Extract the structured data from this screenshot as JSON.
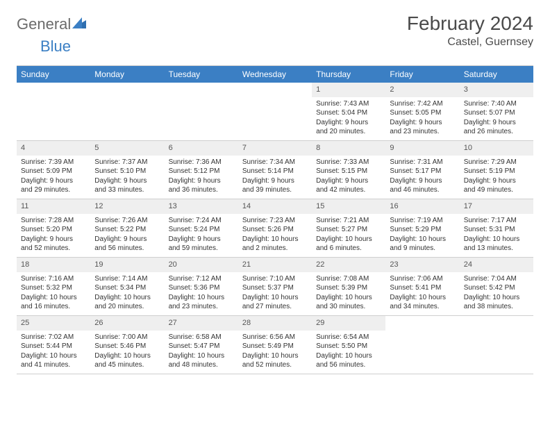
{
  "logo": {
    "text1": "General",
    "text2": "Blue"
  },
  "title": "February 2024",
  "location": "Castel, Guernsey",
  "colors": {
    "header_bg": "#3b7fc4",
    "header_text": "#ffffff",
    "daynum_bg": "#efefef",
    "border": "#cfcfcf",
    "body_text": "#333333",
    "logo_gray": "#6b6b6b",
    "logo_blue": "#3b7fc4",
    "page_bg": "#ffffff"
  },
  "day_headers": [
    "Sunday",
    "Monday",
    "Tuesday",
    "Wednesday",
    "Thursday",
    "Friday",
    "Saturday"
  ],
  "grid": {
    "leading_empty": 4,
    "trailing_empty": 2,
    "days": [
      {
        "n": "1",
        "sunrise": "Sunrise: 7:43 AM",
        "sunset": "Sunset: 5:04 PM",
        "d1": "Daylight: 9 hours",
        "d2": "and 20 minutes."
      },
      {
        "n": "2",
        "sunrise": "Sunrise: 7:42 AM",
        "sunset": "Sunset: 5:05 PM",
        "d1": "Daylight: 9 hours",
        "d2": "and 23 minutes."
      },
      {
        "n": "3",
        "sunrise": "Sunrise: 7:40 AM",
        "sunset": "Sunset: 5:07 PM",
        "d1": "Daylight: 9 hours",
        "d2": "and 26 minutes."
      },
      {
        "n": "4",
        "sunrise": "Sunrise: 7:39 AM",
        "sunset": "Sunset: 5:09 PM",
        "d1": "Daylight: 9 hours",
        "d2": "and 29 minutes."
      },
      {
        "n": "5",
        "sunrise": "Sunrise: 7:37 AM",
        "sunset": "Sunset: 5:10 PM",
        "d1": "Daylight: 9 hours",
        "d2": "and 33 minutes."
      },
      {
        "n": "6",
        "sunrise": "Sunrise: 7:36 AM",
        "sunset": "Sunset: 5:12 PM",
        "d1": "Daylight: 9 hours",
        "d2": "and 36 minutes."
      },
      {
        "n": "7",
        "sunrise": "Sunrise: 7:34 AM",
        "sunset": "Sunset: 5:14 PM",
        "d1": "Daylight: 9 hours",
        "d2": "and 39 minutes."
      },
      {
        "n": "8",
        "sunrise": "Sunrise: 7:33 AM",
        "sunset": "Sunset: 5:15 PM",
        "d1": "Daylight: 9 hours",
        "d2": "and 42 minutes."
      },
      {
        "n": "9",
        "sunrise": "Sunrise: 7:31 AM",
        "sunset": "Sunset: 5:17 PM",
        "d1": "Daylight: 9 hours",
        "d2": "and 46 minutes."
      },
      {
        "n": "10",
        "sunrise": "Sunrise: 7:29 AM",
        "sunset": "Sunset: 5:19 PM",
        "d1": "Daylight: 9 hours",
        "d2": "and 49 minutes."
      },
      {
        "n": "11",
        "sunrise": "Sunrise: 7:28 AM",
        "sunset": "Sunset: 5:20 PM",
        "d1": "Daylight: 9 hours",
        "d2": "and 52 minutes."
      },
      {
        "n": "12",
        "sunrise": "Sunrise: 7:26 AM",
        "sunset": "Sunset: 5:22 PM",
        "d1": "Daylight: 9 hours",
        "d2": "and 56 minutes."
      },
      {
        "n": "13",
        "sunrise": "Sunrise: 7:24 AM",
        "sunset": "Sunset: 5:24 PM",
        "d1": "Daylight: 9 hours",
        "d2": "and 59 minutes."
      },
      {
        "n": "14",
        "sunrise": "Sunrise: 7:23 AM",
        "sunset": "Sunset: 5:26 PM",
        "d1": "Daylight: 10 hours",
        "d2": "and 2 minutes."
      },
      {
        "n": "15",
        "sunrise": "Sunrise: 7:21 AM",
        "sunset": "Sunset: 5:27 PM",
        "d1": "Daylight: 10 hours",
        "d2": "and 6 minutes."
      },
      {
        "n": "16",
        "sunrise": "Sunrise: 7:19 AM",
        "sunset": "Sunset: 5:29 PM",
        "d1": "Daylight: 10 hours",
        "d2": "and 9 minutes."
      },
      {
        "n": "17",
        "sunrise": "Sunrise: 7:17 AM",
        "sunset": "Sunset: 5:31 PM",
        "d1": "Daylight: 10 hours",
        "d2": "and 13 minutes."
      },
      {
        "n": "18",
        "sunrise": "Sunrise: 7:16 AM",
        "sunset": "Sunset: 5:32 PM",
        "d1": "Daylight: 10 hours",
        "d2": "and 16 minutes."
      },
      {
        "n": "19",
        "sunrise": "Sunrise: 7:14 AM",
        "sunset": "Sunset: 5:34 PM",
        "d1": "Daylight: 10 hours",
        "d2": "and 20 minutes."
      },
      {
        "n": "20",
        "sunrise": "Sunrise: 7:12 AM",
        "sunset": "Sunset: 5:36 PM",
        "d1": "Daylight: 10 hours",
        "d2": "and 23 minutes."
      },
      {
        "n": "21",
        "sunrise": "Sunrise: 7:10 AM",
        "sunset": "Sunset: 5:37 PM",
        "d1": "Daylight: 10 hours",
        "d2": "and 27 minutes."
      },
      {
        "n": "22",
        "sunrise": "Sunrise: 7:08 AM",
        "sunset": "Sunset: 5:39 PM",
        "d1": "Daylight: 10 hours",
        "d2": "and 30 minutes."
      },
      {
        "n": "23",
        "sunrise": "Sunrise: 7:06 AM",
        "sunset": "Sunset: 5:41 PM",
        "d1": "Daylight: 10 hours",
        "d2": "and 34 minutes."
      },
      {
        "n": "24",
        "sunrise": "Sunrise: 7:04 AM",
        "sunset": "Sunset: 5:42 PM",
        "d1": "Daylight: 10 hours",
        "d2": "and 38 minutes."
      },
      {
        "n": "25",
        "sunrise": "Sunrise: 7:02 AM",
        "sunset": "Sunset: 5:44 PM",
        "d1": "Daylight: 10 hours",
        "d2": "and 41 minutes."
      },
      {
        "n": "26",
        "sunrise": "Sunrise: 7:00 AM",
        "sunset": "Sunset: 5:46 PM",
        "d1": "Daylight: 10 hours",
        "d2": "and 45 minutes."
      },
      {
        "n": "27",
        "sunrise": "Sunrise: 6:58 AM",
        "sunset": "Sunset: 5:47 PM",
        "d1": "Daylight: 10 hours",
        "d2": "and 48 minutes."
      },
      {
        "n": "28",
        "sunrise": "Sunrise: 6:56 AM",
        "sunset": "Sunset: 5:49 PM",
        "d1": "Daylight: 10 hours",
        "d2": "and 52 minutes."
      },
      {
        "n": "29",
        "sunrise": "Sunrise: 6:54 AM",
        "sunset": "Sunset: 5:50 PM",
        "d1": "Daylight: 10 hours",
        "d2": "and 56 minutes."
      }
    ]
  }
}
